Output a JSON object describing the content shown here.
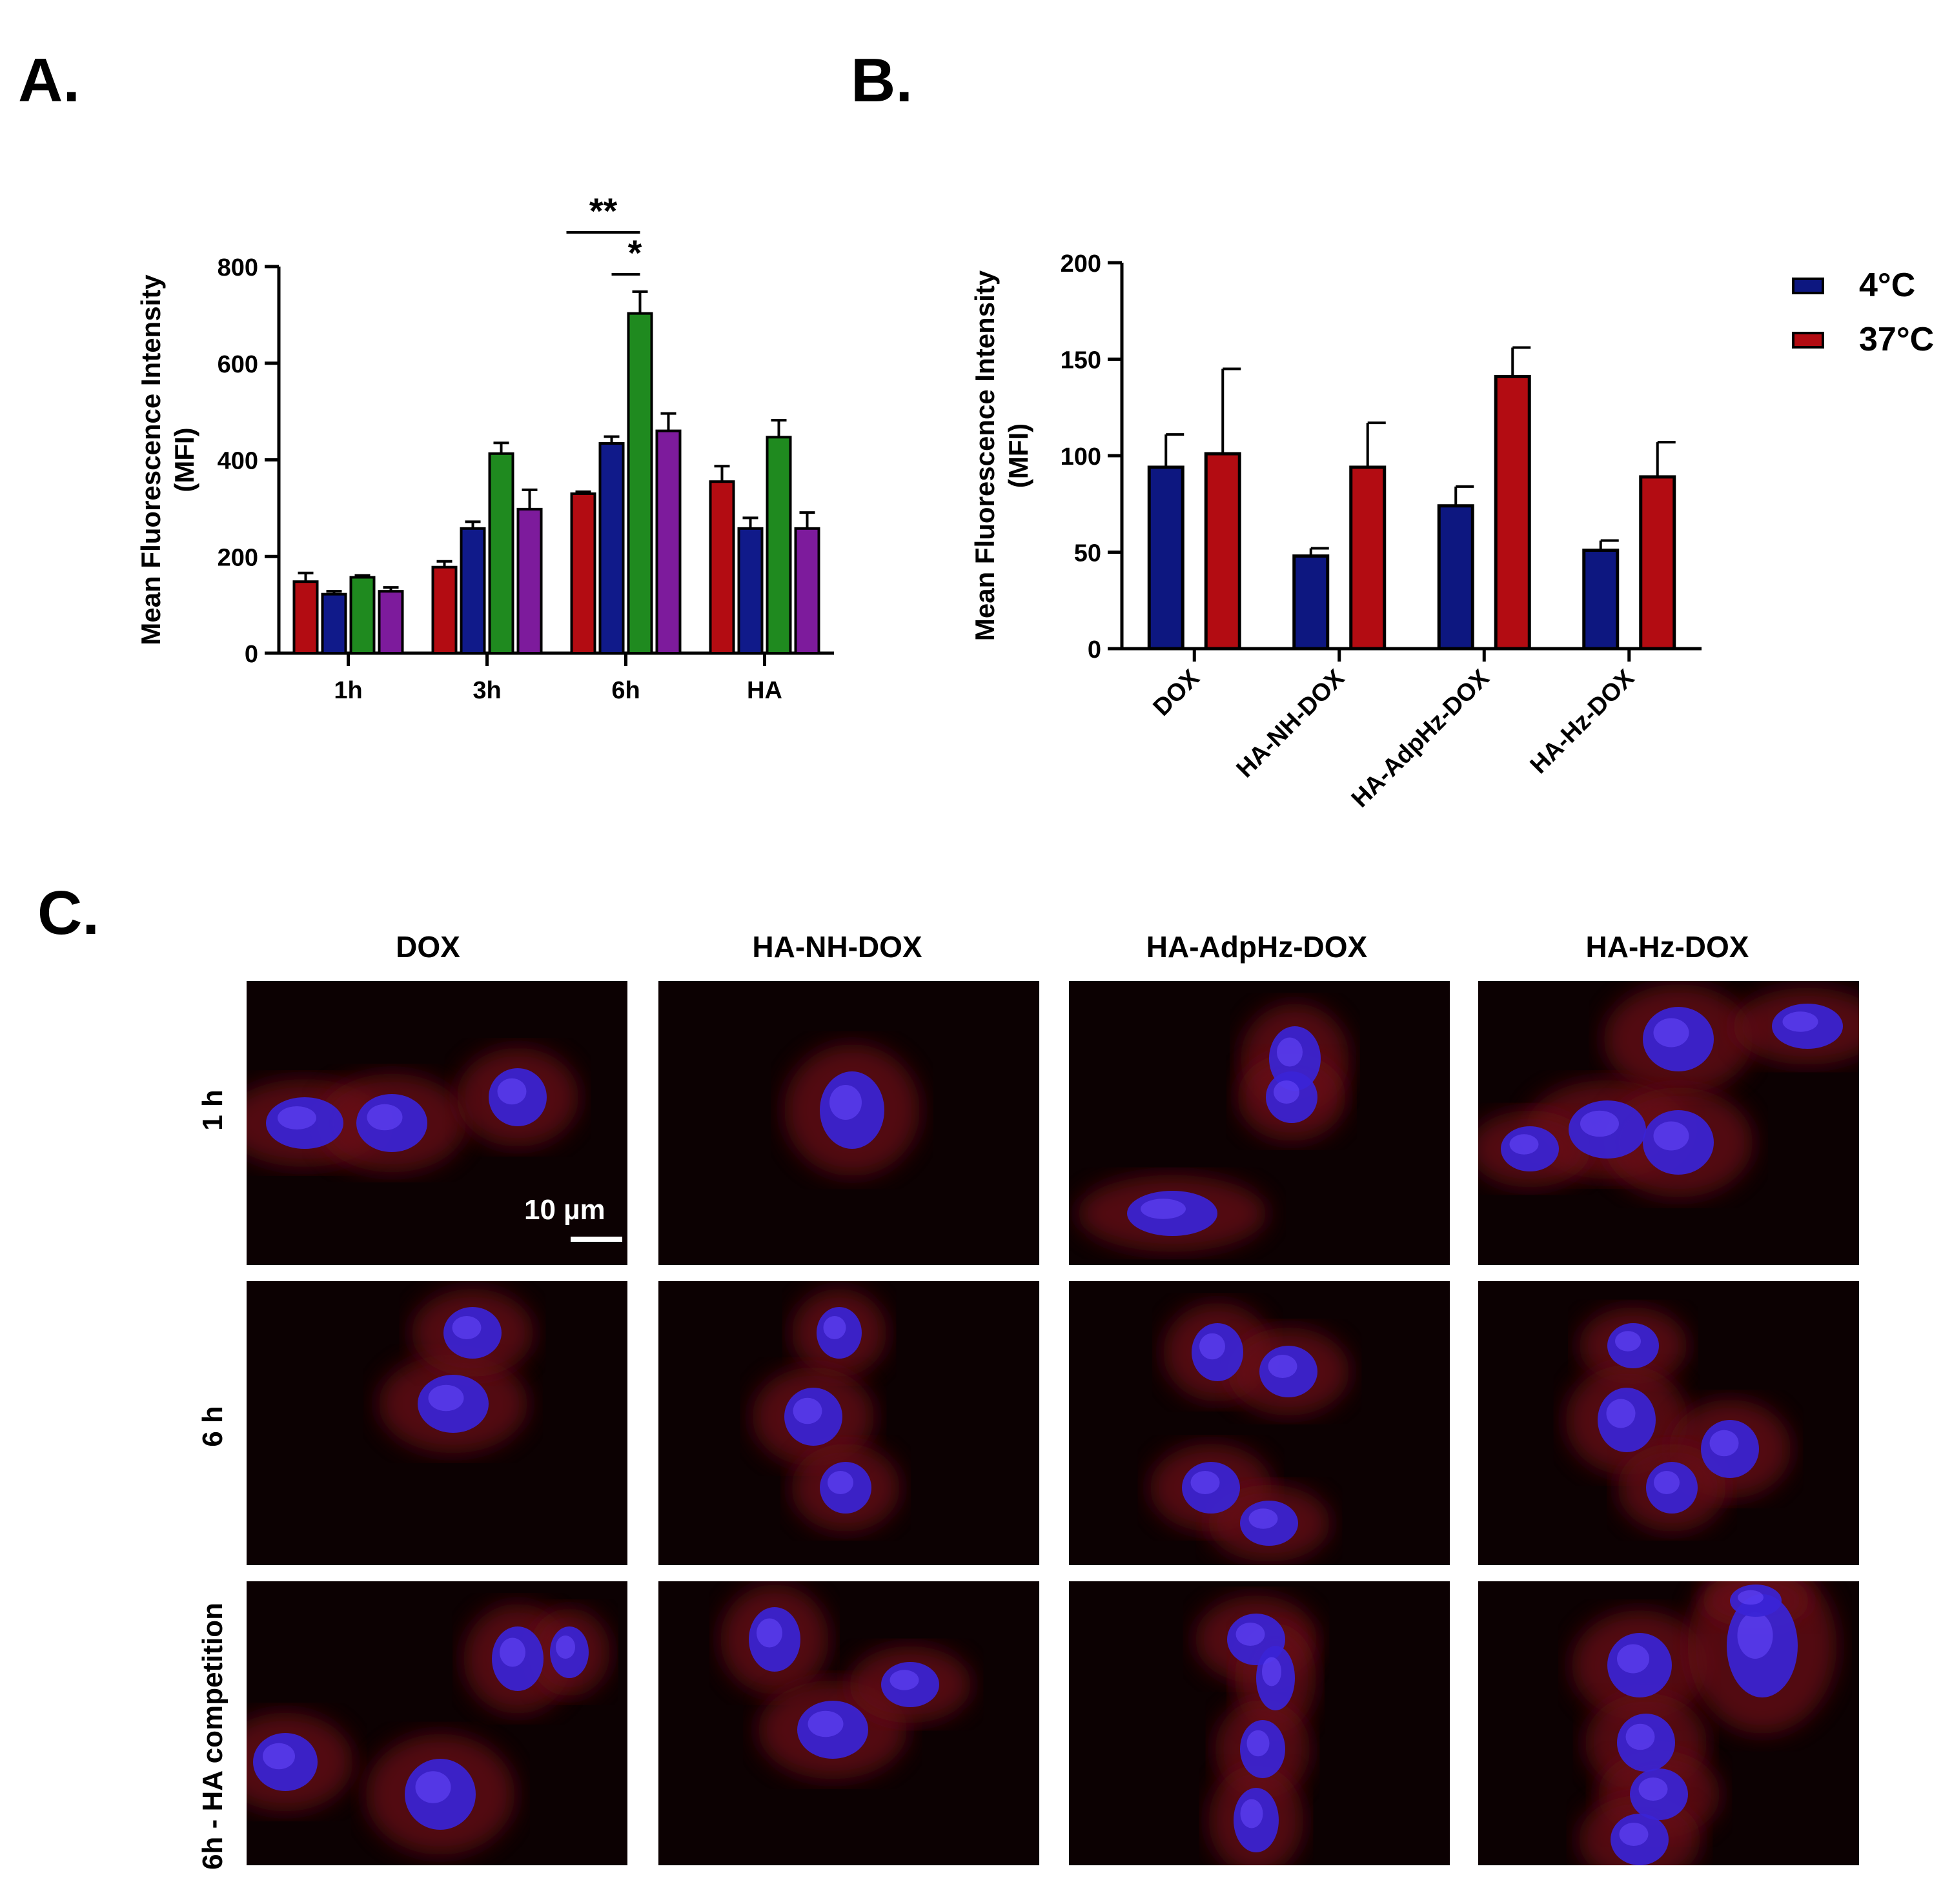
{
  "panels": {
    "a": "A.",
    "b": "B.",
    "c": "C."
  },
  "chart_data": [
    {
      "type": "bar",
      "categories": [
        "1h",
        "3h",
        "6h",
        "HA"
      ],
      "ylabel_line1": "Mean Fluorescence Intensity",
      "ylabel_line2": "(MFI)",
      "ylim": [
        0,
        800
      ],
      "yticks": [
        "0",
        "200",
        "400",
        "600",
        "800"
      ],
      "series": [
        {
          "color": "#b30c12",
          "values": [
            148,
            178,
            330,
            355
          ],
          "errors": [
            18,
            12,
            4,
            32
          ]
        },
        {
          "color": "#101a8a",
          "values": [
            122,
            258,
            434,
            258
          ],
          "errors": [
            6,
            14,
            14,
            22
          ]
        },
        {
          "color": "#1f8a1f",
          "values": [
            157,
            413,
            703,
            447
          ],
          "errors": [
            4,
            22,
            45,
            35
          ]
        },
        {
          "color": "#7d1b9c",
          "values": [
            128,
            298,
            460,
            258
          ],
          "errors": [
            8,
            40,
            36,
            33
          ]
        }
      ],
      "annotations": [
        {
          "label": "**",
          "from_series": 0,
          "to_series": 2,
          "category": 2
        },
        {
          "label": "*",
          "from_series": 1,
          "to_series": 2,
          "category": 2
        }
      ]
    },
    {
      "type": "bar",
      "categories": [
        "DOX",
        "HA-NH-DOX",
        "HA-AdpHz-DOX",
        "HA-Hz-DOX"
      ],
      "ylabel_line1": "Mean Fluorescence Intensity",
      "ylabel_line2": "(MFI)",
      "ylim": [
        0,
        200
      ],
      "yticks": [
        "0",
        "50",
        "100",
        "150",
        "200"
      ],
      "legend_position": "top-right",
      "series": [
        {
          "name": "4°C",
          "color": "#0d1780",
          "values": [
            94,
            48,
            74,
            51
          ],
          "errors": [
            17,
            4,
            10,
            5
          ]
        },
        {
          "name": "37°C",
          "color": "#b30c12",
          "values": [
            101,
            94,
            141,
            89
          ],
          "errors": [
            44,
            23,
            15,
            18
          ]
        }
      ]
    }
  ],
  "microscopy": {
    "columns": [
      "DOX",
      "HA-NH-DOX",
      "HA-AdpHz-DOX",
      "HA-Hz-DOX"
    ],
    "rows": [
      "1 h",
      "6 h",
      "6h - HA competition"
    ],
    "scale_bar": "10 µm"
  }
}
